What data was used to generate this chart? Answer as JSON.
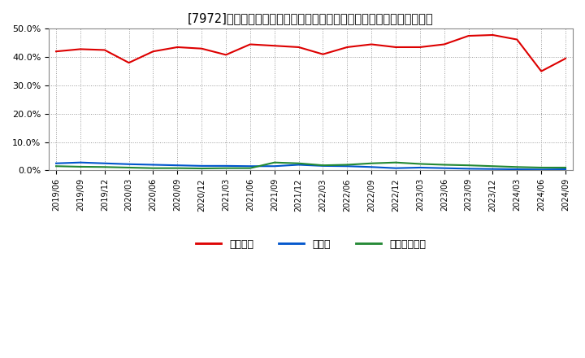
{
  "title": "[7972]　自己資本、のれん、繰延税金資産の総資産に対する比率の推移",
  "x_labels": [
    "2019/06",
    "2019/09",
    "2019/12",
    "2020/03",
    "2020/06",
    "2020/09",
    "2020/12",
    "2021/03",
    "2021/06",
    "2021/09",
    "2021/12",
    "2022/03",
    "2022/06",
    "2022/09",
    "2022/12",
    "2023/03",
    "2023/06",
    "2023/09",
    "2023/12",
    "2024/03",
    "2024/06",
    "2024/09"
  ],
  "equity": [
    42.0,
    42.8,
    42.5,
    38.0,
    42.0,
    43.5,
    43.0,
    40.8,
    44.5,
    44.0,
    43.5,
    41.0,
    43.5,
    44.5,
    43.5,
    43.5,
    44.5,
    47.5,
    47.8,
    46.2,
    35.0,
    39.5
  ],
  "goodwill": [
    2.5,
    2.8,
    2.5,
    2.2,
    2.0,
    1.8,
    1.6,
    1.6,
    1.5,
    1.5,
    2.0,
    1.6,
    1.5,
    1.2,
    0.8,
    1.0,
    0.8,
    0.6,
    0.5,
    0.4,
    0.3,
    0.4
  ],
  "deferred_tax": [
    1.5,
    1.3,
    1.2,
    1.0,
    0.8,
    0.8,
    0.7,
    0.8,
    0.8,
    2.8,
    2.5,
    1.8,
    2.0,
    2.5,
    2.8,
    2.3,
    2.0,
    1.8,
    1.5,
    1.2,
    1.0,
    1.0
  ],
  "equity_color": "#dd0000",
  "goodwill_color": "#0055cc",
  "deferred_tax_color": "#228833",
  "background_color": "#ffffff",
  "grid_color": "#999999",
  "plot_bg_color": "#ffffff",
  "legend_equity": "自己資本",
  "legend_goodwill": "のれん",
  "legend_deferred": "繰延税金資産",
  "ylim": [
    0.0,
    50.0
  ],
  "yticks": [
    0.0,
    10.0,
    20.0,
    30.0,
    40.0,
    50.0
  ]
}
